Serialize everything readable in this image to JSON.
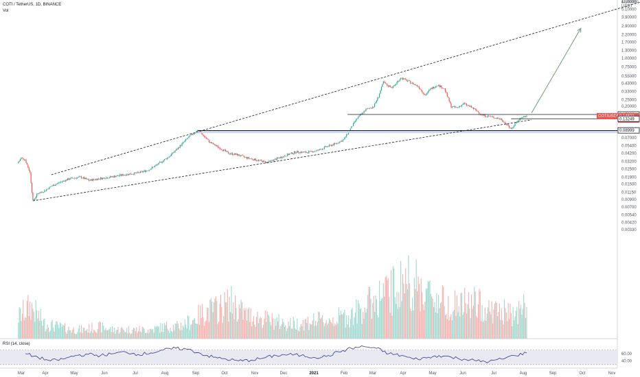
{
  "header": {
    "symbol_line": "COTI / TetherUS, 1D, BINANCE",
    "vol_label": "Vol"
  },
  "rsi_label": "RSI (14, close)",
  "colors": {
    "up": "#26a69a",
    "down": "#ef5350",
    "vol_up": "#9ed9cf",
    "vol_down": "#f4b0ad",
    "rsi_line": "#2a3a8c",
    "rsi_band": "#e9e9f1",
    "price_tag": "#ef5350",
    "dark_tag": "#131722",
    "support_band": "#c5d3ea",
    "arrow": "#66a36b"
  },
  "chart_data": {
    "type": "candlestick",
    "scale": "log",
    "price_axis_unit": "USDT",
    "price_axis_ticks": [
      "11.00000",
      "8.50000",
      "6.50000",
      "5.10000",
      "3.90000",
      "2.90000",
      "2.20000",
      "1.70000",
      "1.30000",
      "1.00000",
      "0.75000",
      "0.55000",
      "0.43000",
      "0.33000",
      "0.25000",
      "0.20000",
      "0.09000",
      "0.07000",
      "0.05400",
      "0.04200",
      "0.03200",
      "0.02500",
      "0.01900",
      "0.01500",
      "0.01150",
      "0.00900",
      "0.00700",
      "0.00540",
      "0.00420",
      "0.00330"
    ],
    "x_axis_ticks": [
      "Mar",
      "Apr",
      "May",
      "Jun",
      "Jul",
      "Aug",
      "Sep",
      "Oct",
      "Nov",
      "Dec",
      "2021",
      "Feb",
      "Mar",
      "Apr",
      "May",
      "Jun",
      "Jul",
      "Aug",
      "Sep",
      "Oct",
      "Nov"
    ],
    "price_tags": [
      {
        "value": "0.15296",
        "style": "dark-outline"
      },
      {
        "value": "0.14621",
        "style": "red",
        "symbol": "COTIUSDT",
        "countdown": "17:00:54"
      },
      {
        "value": "0.13249",
        "style": "dark-outline"
      },
      {
        "value": "0.08999",
        "style": "dark-outline"
      }
    ],
    "rsi_ticks": [
      "60.00",
      "40.00"
    ],
    "price_path": [
      [
        "2020-02-26",
        0.03
      ],
      [
        "2020-03-01",
        0.036
      ],
      [
        "2020-03-05",
        0.034
      ],
      [
        "2020-03-10",
        0.022
      ],
      [
        "2020-03-13",
        0.0085
      ],
      [
        "2020-03-18",
        0.011
      ],
      [
        "2020-03-25",
        0.012
      ],
      [
        "2020-04-01",
        0.014
      ],
      [
        "2020-04-10",
        0.016
      ],
      [
        "2020-04-20",
        0.018
      ],
      [
        "2020-05-01",
        0.019
      ],
      [
        "2020-05-10",
        0.017
      ],
      [
        "2020-05-20",
        0.018
      ],
      [
        "2020-06-01",
        0.019
      ],
      [
        "2020-06-10",
        0.02
      ],
      [
        "2020-06-20",
        0.021
      ],
      [
        "2020-07-01",
        0.022
      ],
      [
        "2020-07-10",
        0.024
      ],
      [
        "2020-07-20",
        0.029
      ],
      [
        "2020-08-01",
        0.038
      ],
      [
        "2020-08-10",
        0.05
      ],
      [
        "2020-08-20",
        0.07
      ],
      [
        "2020-08-30",
        0.09
      ],
      [
        "2020-09-05",
        0.076
      ],
      [
        "2020-09-12",
        0.06
      ],
      [
        "2020-09-20",
        0.052
      ],
      [
        "2020-10-01",
        0.042
      ],
      [
        "2020-10-10",
        0.04
      ],
      [
        "2020-10-20",
        0.036
      ],
      [
        "2020-11-01",
        0.033
      ],
      [
        "2020-11-10",
        0.031
      ],
      [
        "2020-11-20",
        0.035
      ],
      [
        "2020-12-01",
        0.04
      ],
      [
        "2020-12-10",
        0.044
      ],
      [
        "2020-12-20",
        0.043
      ],
      [
        "2021-01-01",
        0.046
      ],
      [
        "2021-01-10",
        0.052
      ],
      [
        "2021-01-20",
        0.058
      ],
      [
        "2021-01-28",
        0.066
      ],
      [
        "2021-02-03",
        0.09
      ],
      [
        "2021-02-10",
        0.13
      ],
      [
        "2021-02-20",
        0.18
      ],
      [
        "2021-02-28",
        0.2
      ],
      [
        "2021-03-05",
        0.28
      ],
      [
        "2021-03-10",
        0.45
      ],
      [
        "2021-03-14",
        0.4
      ],
      [
        "2021-03-20",
        0.38
      ],
      [
        "2021-03-28",
        0.52
      ],
      [
        "2021-04-05",
        0.46
      ],
      [
        "2021-04-15",
        0.39
      ],
      [
        "2021-04-22",
        0.29
      ],
      [
        "2021-04-28",
        0.36
      ],
      [
        "2021-05-05",
        0.41
      ],
      [
        "2021-05-12",
        0.36
      ],
      [
        "2021-05-19",
        0.2
      ],
      [
        "2021-05-25",
        0.19
      ],
      [
        "2021-06-01",
        0.22
      ],
      [
        "2021-06-10",
        0.19
      ],
      [
        "2021-06-20",
        0.15
      ],
      [
        "2021-07-01",
        0.14
      ],
      [
        "2021-07-10",
        0.13
      ],
      [
        "2021-07-20",
        0.094
      ],
      [
        "2021-07-25",
        0.118
      ],
      [
        "2021-08-01",
        0.14
      ],
      [
        "2021-08-05",
        0.146
      ]
    ],
    "volume_relative": [
      0.35,
      0.55,
      0.25,
      0.2,
      0.15,
      0.15,
      0.2,
      0.15,
      0.15,
      0.15,
      0.15,
      0.2,
      0.2,
      0.3,
      0.45,
      0.5,
      0.6,
      0.4,
      0.35,
      0.3,
      0.25,
      0.25,
      0.3,
      0.3,
      0.35,
      0.4,
      0.55,
      0.7,
      0.8,
      1.0,
      0.85,
      0.7,
      0.6,
      0.55,
      0.6,
      0.5,
      0.45,
      0.4,
      0.55
    ],
    "rsi_values": [
      60,
      50,
      40,
      45,
      55,
      58,
      55,
      60,
      65,
      58,
      62,
      70,
      75,
      72,
      60,
      50,
      45,
      40,
      42,
      48,
      55,
      58,
      55,
      50,
      52,
      65,
      75,
      80,
      75,
      60,
      55,
      45,
      48,
      55,
      50,
      45,
      40,
      38,
      45,
      55,
      62
    ],
    "annotations": [
      {
        "type": "trendline",
        "style": "dashed",
        "from": [
          "2020-04-01",
          0.0205
        ],
        "to": [
          "2021-12-01",
          6.5
        ]
      },
      {
        "type": "trendline",
        "style": "dashed",
        "from": [
          "2020-03-13",
          0.0086
        ],
        "to": [
          "2021-08-10",
          0.128
        ]
      },
      {
        "type": "hline",
        "value": 0.15296,
        "from": "2021-02-01"
      },
      {
        "type": "hline",
        "value": 0.13249,
        "from": "2021-07-20"
      },
      {
        "type": "zone",
        "low": 0.0855,
        "high": 0.09,
        "from": "2020-08-30"
      },
      {
        "type": "arrow",
        "from": [
          "2021-08-10",
          0.16
        ],
        "to": [
          "2021-09-30",
          2.7
        ]
      }
    ]
  }
}
